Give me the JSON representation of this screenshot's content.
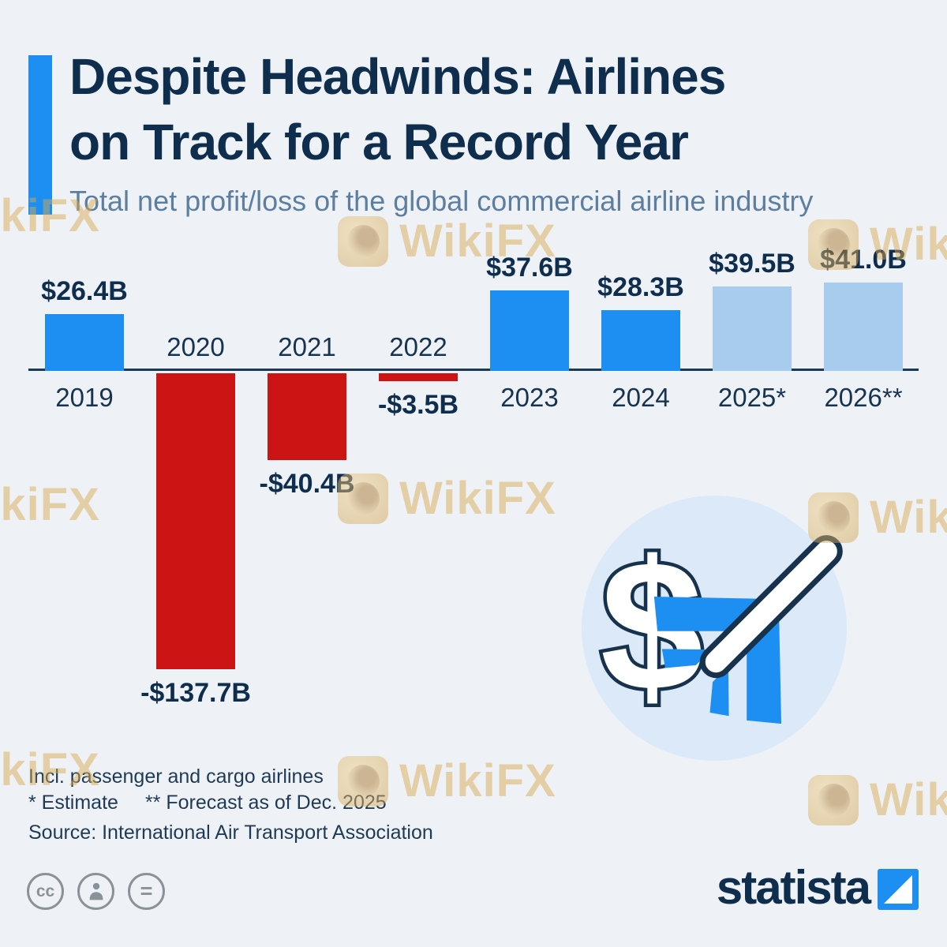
{
  "colors": {
    "background": "#eef2f7",
    "accent_blue": "#1e8ff2",
    "forecast_blue": "#a7ccee",
    "loss_red": "#cc1414",
    "navy": "#0f2e4d",
    "subtitle_gray": "#5d7e9e",
    "watermark_gold": "#d9a94e"
  },
  "header": {
    "title_line1": "Despite Headwinds: Airlines",
    "title_line2": "on Track for a Record Year",
    "subtitle": "Total net profit/loss of the global commercial airline industry"
  },
  "watermark": {
    "text": "WikiFX"
  },
  "chart_data": {
    "type": "bar",
    "title": "Despite Headwinds: Airlines on Track for a Record Year",
    "subtitle": "Total net profit/loss of the global commercial airline industry",
    "unit": "USD billions",
    "categories": [
      "2019",
      "2020",
      "2021",
      "2022",
      "2023",
      "2024",
      "2025*",
      "2026**"
    ],
    "values": [
      26.4,
      -137.7,
      -40.4,
      -3.5,
      37.6,
      28.3,
      39.5,
      41.0
    ],
    "value_labels": [
      "$26.4B",
      "-$137.7B",
      "-$40.4B",
      "-$3.5B",
      "$37.6B",
      "$28.3B",
      "$39.5B",
      "$41.0B"
    ],
    "bar_styles": [
      "profit",
      "loss",
      "loss",
      "loss",
      "profit",
      "profit",
      "forecast",
      "forecast"
    ],
    "colors": {
      "profit": "#1e8ff2",
      "loss": "#cc1414",
      "forecast": "#a7ccee"
    },
    "baseline": 0,
    "grid": false,
    "value_axis_visible": false
  },
  "footer": {
    "note1": "Incl. passenger and cargo airlines",
    "note2_estimate": "* Estimate",
    "note2_forecast": "** Forecast as of Dec. 2025",
    "source": "Source: International Air Transport Association",
    "brand": "statista"
  },
  "license": {
    "cc_glyph": "cc",
    "equals_glyph": "="
  }
}
